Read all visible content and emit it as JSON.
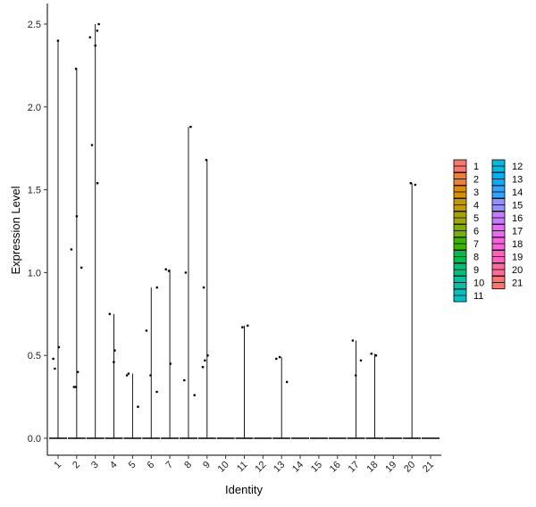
{
  "chart_data": {
    "type": "violin",
    "xlabel": "Identity",
    "ylabel": "Expression Level",
    "ylim": [
      -0.12,
      2.62
    ],
    "yticks": [
      0.0,
      0.5,
      1.0,
      1.5,
      2.0,
      2.5
    ],
    "ytick_labels": [
      "0.0",
      "0.5",
      "1.0",
      "1.5",
      "2.0",
      "2.5"
    ],
    "categories": [
      "1",
      "2",
      "3",
      "4",
      "5",
      "6",
      "7",
      "8",
      "9",
      "10",
      "11",
      "12",
      "13",
      "14",
      "15",
      "16",
      "17",
      "18",
      "19",
      "20",
      "21"
    ],
    "colors": [
      "#F8766D",
      "#EA8331",
      "#D89000",
      "#C09B00",
      "#A3A500",
      "#7CAE00",
      "#39B600",
      "#00BB4E",
      "#00BF7D",
      "#00C1A3",
      "#00BFC4",
      "#00BAE0",
      "#00B0F6",
      "#35A2FF",
      "#9590FF",
      "#C77CFF",
      "#E76BF3",
      "#FA62DB",
      "#FF62BC",
      "#FF6A98",
      "#F8766D"
    ],
    "violin_max": [
      2.4,
      2.23,
      2.5,
      0.75,
      0.39,
      0.91,
      1.02,
      1.88,
      1.68,
      0,
      0.68,
      0,
      0.49,
      0,
      0,
      0,
      0.59,
      0.51,
      0,
      1.54,
      0
    ],
    "points": [
      {
        "cat": 1,
        "values": [
          2.4,
          0.55,
          0.48,
          0.42
        ]
      },
      {
        "cat": 2,
        "values": [
          2.23,
          1.34,
          1.14,
          1.03,
          0.4,
          0.31,
          0.31
        ]
      },
      {
        "cat": 3,
        "values": [
          2.5,
          2.46,
          2.42,
          2.37,
          1.77,
          1.54
        ]
      },
      {
        "cat": 4,
        "values": [
          0.75,
          0.53,
          0.46
        ]
      },
      {
        "cat": 5,
        "values": [
          0.39,
          0.38,
          0.19
        ]
      },
      {
        "cat": 6,
        "values": [
          0.91,
          0.65,
          0.38,
          0.28
        ]
      },
      {
        "cat": 7,
        "values": [
          1.02,
          1.01,
          0.45
        ]
      },
      {
        "cat": 8,
        "values": [
          1.88,
          1.0,
          0.35,
          0.26
        ]
      },
      {
        "cat": 9,
        "values": [
          1.68,
          0.91,
          0.5,
          0.47,
          0.43
        ]
      },
      {
        "cat": 11,
        "values": [
          0.68,
          0.67
        ]
      },
      {
        "cat": 13,
        "values": [
          0.49,
          0.48,
          0.34
        ]
      },
      {
        "cat": 17,
        "values": [
          0.59,
          0.47,
          0.38
        ]
      },
      {
        "cat": 18,
        "values": [
          0.51,
          0.5
        ]
      },
      {
        "cat": 20,
        "values": [
          1.54,
          1.53
        ]
      }
    ],
    "legend": {
      "position": "right",
      "entries": [
        "1",
        "2",
        "3",
        "4",
        "5",
        "6",
        "7",
        "8",
        "9",
        "10",
        "11",
        "12",
        "13",
        "14",
        "15",
        "16",
        "17",
        "18",
        "19",
        "20",
        "21"
      ]
    },
    "grid": false
  }
}
